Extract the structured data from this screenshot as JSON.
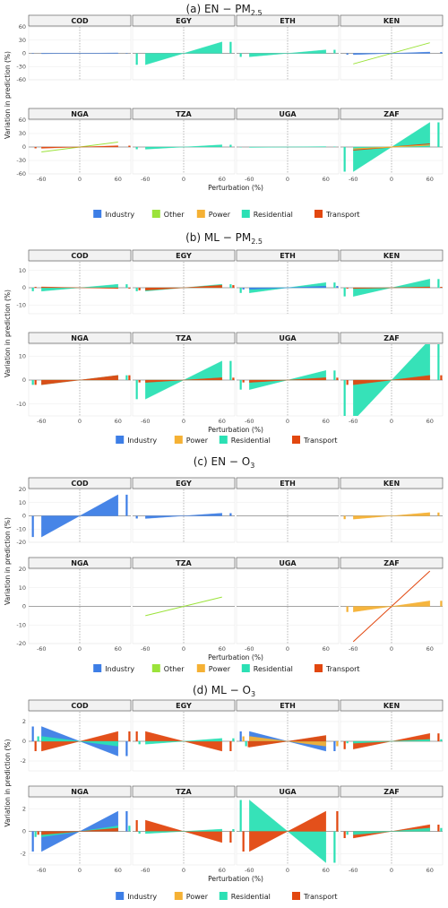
{
  "colors": {
    "Industry": "#3d7ee6",
    "Other": "#9be33a",
    "Power": "#f5b134",
    "Residential": "#2be0b4",
    "Transport": "#e2470f"
  },
  "chart_data": [
    {
      "type": "area",
      "title": "(a) EN − PM2.5",
      "title_main": "(a) EN − PM",
      "title_sub": "2.5",
      "ylabel": "Variation in prediction (%)",
      "xlabel": "Perturbation (%)",
      "xlim": [
        -80,
        80
      ],
      "ylim": [
        -60,
        60
      ],
      "yticks": [
        -60,
        -30,
        0,
        30,
        60
      ],
      "xticks": [
        -60,
        0,
        60
      ],
      "legend": [
        "Industry",
        "Other",
        "Power",
        "Residential",
        "Transport"
      ],
      "panels": [
        {
          "name": "COD",
          "series": [
            {
              "name": "Industry",
              "value": 1
            }
          ]
        },
        {
          "name": "EGY",
          "series": [
            {
              "name": "Residential",
              "value": 26
            }
          ]
        },
        {
          "name": "ETH",
          "series": [
            {
              "name": "Residential",
              "value": 8
            }
          ]
        },
        {
          "name": "KEN",
          "series": [
            {
              "name": "Other",
              "value": 24,
              "style": "line"
            },
            {
              "name": "Industry",
              "value": 3
            }
          ]
        },
        {
          "name": "NGA",
          "series": [
            {
              "name": "Other",
              "value": 11,
              "style": "line"
            },
            {
              "name": "Transport",
              "value": 3
            }
          ]
        },
        {
          "name": "TZA",
          "series": [
            {
              "name": "Residential",
              "value": 5
            }
          ]
        },
        {
          "name": "UGA",
          "series": [
            {
              "name": "Residential",
              "value": 1
            }
          ]
        },
        {
          "name": "ZAF",
          "series": [
            {
              "name": "Residential",
              "value": 55
            },
            {
              "name": "Transport",
              "value": 7,
              "style": "line"
            },
            {
              "name": "Power",
              "value": 4,
              "style": "line"
            }
          ]
        }
      ]
    },
    {
      "type": "area",
      "title": "(b) ML − PM2.5",
      "title_main": "(b) ML − PM",
      "title_sub": "2.5",
      "ylabel": "Variation in prediction (%)",
      "xlabel": "Perturbation (%)",
      "xlim": [
        -80,
        80
      ],
      "ylim": [
        -15,
        15
      ],
      "yticks": [
        -10,
        0,
        10
      ],
      "xticks": [
        -60,
        0,
        60
      ],
      "legend": [
        "Industry",
        "Power",
        "Residential",
        "Transport"
      ],
      "panels": [
        {
          "name": "COD",
          "series": [
            {
              "name": "Residential",
              "value": 2
            },
            {
              "name": "Transport",
              "value": -0.5
            }
          ]
        },
        {
          "name": "EGY",
          "series": [
            {
              "name": "Residential",
              "value": 2
            },
            {
              "name": "Transport",
              "value": 1.5
            }
          ]
        },
        {
          "name": "ETH",
          "series": [
            {
              "name": "Residential",
              "value": 3
            },
            {
              "name": "Industry",
              "value": 1
            }
          ]
        },
        {
          "name": "KEN",
          "series": [
            {
              "name": "Residential",
              "value": 5
            },
            {
              "name": "Transport",
              "value": 0.5
            }
          ]
        },
        {
          "name": "NGA",
          "series": [
            {
              "name": "Residential",
              "value": 2
            },
            {
              "name": "Transport",
              "value": 2
            }
          ]
        },
        {
          "name": "TZA",
          "series": [
            {
              "name": "Residential",
              "value": 8
            },
            {
              "name": "Transport",
              "value": 1
            }
          ]
        },
        {
          "name": "UGA",
          "series": [
            {
              "name": "Residential",
              "value": 4
            },
            {
              "name": "Transport",
              "value": 1
            }
          ]
        },
        {
          "name": "ZAF",
          "series": [
            {
              "name": "Residential",
              "value": 17
            },
            {
              "name": "Transport",
              "value": 2
            }
          ]
        }
      ]
    },
    {
      "type": "area",
      "title": "(c) EN − O3",
      "title_main": "(c) EN − O",
      "title_sub": "3",
      "ylabel": "Variation in prediction (%)",
      "xlabel": "Perturbation (%)",
      "xlim": [
        -80,
        80
      ],
      "ylim": [
        -20,
        20
      ],
      "yticks": [
        -20,
        -10,
        0,
        10,
        20
      ],
      "xticks": [
        -60,
        0,
        60
      ],
      "legend": [
        "Industry",
        "Other",
        "Power",
        "Residential",
        "Transport"
      ],
      "panels": [
        {
          "name": "COD",
          "series": [
            {
              "name": "Industry",
              "value": 16
            }
          ]
        },
        {
          "name": "EGY",
          "series": [
            {
              "name": "Industry",
              "value": 2
            }
          ]
        },
        {
          "name": "ETH",
          "series": []
        },
        {
          "name": "KEN",
          "series": [
            {
              "name": "Power",
              "value": 2.5
            }
          ]
        },
        {
          "name": "NGA",
          "series": []
        },
        {
          "name": "TZA",
          "series": [
            {
              "name": "Other",
              "value": 5,
              "style": "line"
            }
          ]
        },
        {
          "name": "UGA",
          "series": []
        },
        {
          "name": "ZAF",
          "series": [
            {
              "name": "Transport",
              "value": 19,
              "style": "line"
            },
            {
              "name": "Power",
              "value": 3
            }
          ]
        }
      ]
    },
    {
      "type": "area",
      "title": "(d) ML − O3",
      "title_main": "(d) ML − O",
      "title_sub": "3",
      "ylabel": "Variation in prediction (%)",
      "xlabel": "Perturbation (%)",
      "xlim": [
        -80,
        80
      ],
      "ylim": [
        -3,
        3
      ],
      "yticks": [
        -2,
        0,
        2
      ],
      "xticks": [
        -60,
        0,
        60
      ],
      "legend": [
        "Industry",
        "Power",
        "Residential",
        "Transport"
      ],
      "panels": [
        {
          "name": "COD",
          "series": [
            {
              "name": "Industry",
              "value": -1.5
            },
            {
              "name": "Transport",
              "value": 1
            },
            {
              "name": "Residential",
              "value": -0.5
            }
          ]
        },
        {
          "name": "EGY",
          "series": [
            {
              "name": "Transport",
              "value": -1
            },
            {
              "name": "Residential",
              "value": 0.3
            }
          ]
        },
        {
          "name": "ETH",
          "series": [
            {
              "name": "Industry",
              "value": -1
            },
            {
              "name": "Power",
              "value": -0.5
            },
            {
              "name": "Residential",
              "value": 0.5
            },
            {
              "name": "Transport",
              "value": 0.6
            }
          ]
        },
        {
          "name": "KEN",
          "series": [
            {
              "name": "Transport",
              "value": 0.8
            },
            {
              "name": "Residential",
              "value": 0.2
            }
          ]
        },
        {
          "name": "NGA",
          "series": [
            {
              "name": "Industry",
              "value": 1.8
            },
            {
              "name": "Residential",
              "value": 0.5
            },
            {
              "name": "Transport",
              "value": 0.3
            }
          ]
        },
        {
          "name": "TZA",
          "series": [
            {
              "name": "Transport",
              "value": -1
            },
            {
              "name": "Residential",
              "value": 0.2
            }
          ]
        },
        {
          "name": "UGA",
          "series": [
            {
              "name": "Residential",
              "value": -2.8
            },
            {
              "name": "Transport",
              "value": 1.8
            }
          ]
        },
        {
          "name": "ZAF",
          "series": [
            {
              "name": "Transport",
              "value": 0.6
            },
            {
              "name": "Residential",
              "value": 0.3
            }
          ]
        }
      ]
    }
  ]
}
